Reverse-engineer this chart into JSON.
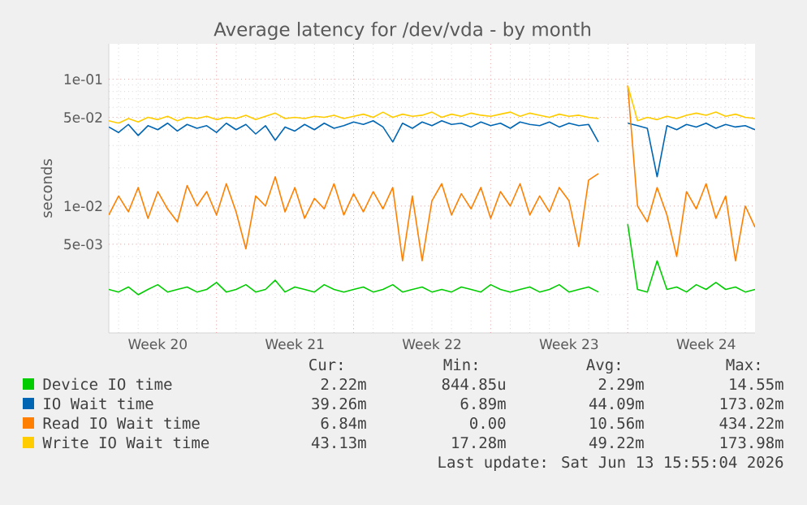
{
  "chart_data": {
    "type": "line",
    "title": "Average latency for /dev/vda - by month",
    "ylabel": "seconds",
    "log": "y",
    "grid": true,
    "legend": "bottom",
    "xlim": [
      "2026-05-12T12:00",
      "2026-06-14T12:00"
    ],
    "xticks": [
      {
        "value": "2026-05-15",
        "label": "Week 20"
      },
      {
        "value": "2026-05-22",
        "label": "Week 21"
      },
      {
        "value": "2026-05-29",
        "label": "Week 22"
      },
      {
        "value": "2026-06-05",
        "label": "Week 23"
      },
      {
        "value": "2026-06-12",
        "label": "Week 24"
      }
    ],
    "ylim": [
      0.001,
      0.19
    ],
    "yticks": [
      {
        "value": 0.005,
        "label": "5e-03"
      },
      {
        "value": 0.01,
        "label": "1e-02"
      },
      {
        "value": 0.05,
        "label": "5e-02"
      },
      {
        "value": 0.1,
        "label": "1e-01"
      }
    ],
    "x": [
      "2026-05-12T12:00",
      "2026-05-13T00:00",
      "2026-05-13T12:00",
      "2026-05-14T00:00",
      "2026-05-14T12:00",
      "2026-05-15T00:00",
      "2026-05-15T12:00",
      "2026-05-16T00:00",
      "2026-05-16T12:00",
      "2026-05-17T00:00",
      "2026-05-17T12:00",
      "2026-05-18T00:00",
      "2026-05-18T12:00",
      "2026-05-19T00:00",
      "2026-05-19T12:00",
      "2026-05-20T00:00",
      "2026-05-20T12:00",
      "2026-05-21T00:00",
      "2026-05-21T12:00",
      "2026-05-22T00:00",
      "2026-05-22T12:00",
      "2026-05-23T00:00",
      "2026-05-23T12:00",
      "2026-05-24T00:00",
      "2026-05-24T12:00",
      "2026-05-25T00:00",
      "2026-05-25T12:00",
      "2026-05-26T00:00",
      "2026-05-26T12:00",
      "2026-05-27T00:00",
      "2026-05-27T12:00",
      "2026-05-28T00:00",
      "2026-05-28T12:00",
      "2026-05-29T00:00",
      "2026-05-29T12:00",
      "2026-05-30T00:00",
      "2026-05-30T12:00",
      "2026-05-31T00:00",
      "2026-05-31T12:00",
      "2026-06-01T00:00",
      "2026-06-01T12:00",
      "2026-06-02T00:00",
      "2026-06-02T12:00",
      "2026-06-03T00:00",
      "2026-06-03T12:00",
      "2026-06-04T00:00",
      "2026-06-04T12:00",
      "2026-06-05T00:00",
      "2026-06-05T12:00",
      "2026-06-06T00:00",
      "2026-06-06T12:00",
      "2026-06-07T00:00",
      "2026-06-07T12:00",
      "2026-06-08T00:00",
      "2026-06-08T12:00",
      "2026-06-09T00:00",
      "2026-06-09T12:00",
      "2026-06-10T00:00",
      "2026-06-10T12:00",
      "2026-06-11T00:00",
      "2026-06-11T12:00",
      "2026-06-12T00:00",
      "2026-06-12T12:00",
      "2026-06-13T00:00",
      "2026-06-13T12:00",
      "2026-06-14T00:00",
      "2026-06-14T12:00"
    ],
    "series": [
      {
        "name": "Device IO time",
        "color": "#00cc00",
        "values": [
          0.0022,
          0.0021,
          0.0023,
          0.002,
          0.0022,
          0.0024,
          0.0021,
          0.0022,
          0.0023,
          0.0021,
          0.0022,
          0.0025,
          0.0021,
          0.0022,
          0.0024,
          0.0021,
          0.0022,
          0.0026,
          0.0021,
          0.0023,
          0.0022,
          0.0021,
          0.0024,
          0.0022,
          0.0021,
          0.0022,
          0.0023,
          0.0021,
          0.0022,
          0.0024,
          0.0021,
          0.0022,
          0.0023,
          0.0021,
          0.0022,
          0.0021,
          0.0023,
          0.0022,
          0.0021,
          0.0024,
          0.0022,
          0.0021,
          0.0022,
          0.0023,
          0.0021,
          0.0022,
          0.0024,
          0.0021,
          0.0022,
          0.0023,
          0.0021,
          null,
          null,
          0.0072,
          0.0022,
          0.0021,
          0.0037,
          0.0022,
          0.0023,
          0.0021,
          0.0024,
          0.0022,
          0.0025,
          0.0022,
          0.0023,
          0.0021,
          0.0022
        ]
      },
      {
        "name": "IO Wait time",
        "color": "#0066b3",
        "values": [
          0.042,
          0.038,
          0.044,
          0.036,
          0.043,
          0.04,
          0.045,
          0.039,
          0.044,
          0.041,
          0.043,
          0.038,
          0.045,
          0.04,
          0.044,
          0.037,
          0.043,
          0.033,
          0.042,
          0.039,
          0.044,
          0.04,
          0.045,
          0.041,
          0.043,
          0.046,
          0.044,
          0.047,
          0.042,
          0.032,
          0.045,
          0.041,
          0.046,
          0.043,
          0.047,
          0.044,
          0.045,
          0.042,
          0.046,
          0.043,
          0.045,
          0.041,
          0.046,
          0.044,
          0.043,
          0.046,
          0.042,
          0.045,
          0.043,
          0.044,
          0.032,
          null,
          null,
          0.045,
          0.043,
          0.041,
          0.017,
          0.043,
          0.04,
          0.044,
          0.042,
          0.045,
          0.041,
          0.044,
          0.042,
          0.043,
          0.04
        ]
      },
      {
        "name": "Read IO Wait time",
        "color": "#ff8000",
        "values": [
          0.0085,
          0.012,
          0.009,
          0.014,
          0.008,
          0.013,
          0.0095,
          0.0075,
          0.0145,
          0.01,
          0.013,
          0.0085,
          0.015,
          0.009,
          0.0046,
          0.012,
          0.01,
          0.017,
          0.009,
          0.014,
          0.008,
          0.0115,
          0.0095,
          0.015,
          0.0085,
          0.0125,
          0.009,
          0.013,
          0.0095,
          0.014,
          0.0037,
          0.012,
          0.0037,
          0.011,
          0.015,
          0.0085,
          0.0125,
          0.0095,
          0.014,
          0.008,
          0.013,
          0.01,
          0.015,
          0.0085,
          0.012,
          0.009,
          0.014,
          0.011,
          0.0048,
          0.016,
          0.018,
          null,
          null,
          0.089,
          0.01,
          0.0075,
          0.014,
          0.0085,
          0.004,
          0.013,
          0.0095,
          0.015,
          0.008,
          0.012,
          0.0037,
          0.01,
          0.0068
        ]
      },
      {
        "name": "Write IO Wait time",
        "color": "#ffcc00",
        "values": [
          0.047,
          0.045,
          0.049,
          0.046,
          0.05,
          0.048,
          0.051,
          0.047,
          0.05,
          0.049,
          0.051,
          0.048,
          0.05,
          0.049,
          0.052,
          0.048,
          0.051,
          0.054,
          0.049,
          0.05,
          0.049,
          0.051,
          0.05,
          0.052,
          0.049,
          0.051,
          0.053,
          0.05,
          0.055,
          0.05,
          0.053,
          0.051,
          0.052,
          0.055,
          0.05,
          0.053,
          0.051,
          0.054,
          0.052,
          0.051,
          0.053,
          0.055,
          0.051,
          0.054,
          0.052,
          0.05,
          0.053,
          0.051,
          0.052,
          0.05,
          0.049,
          null,
          null,
          0.089,
          0.047,
          0.05,
          0.048,
          0.051,
          0.049,
          0.052,
          0.054,
          0.052,
          0.055,
          0.051,
          0.053,
          0.05,
          0.049
        ]
      }
    ],
    "annotations": [
      "Cur:",
      "Min:",
      "Avg:",
      "Max:",
      "2.22m",
      "844.85u",
      "2.29m",
      "14.55m",
      "39.26m",
      "6.89m",
      "44.09m",
      "173.02m",
      "6.84m",
      "0.00",
      "10.56m",
      "434.22m",
      "43.13m",
      "17.28m",
      "49.22m",
      "173.98m",
      "Last update: Sat Jun 13 15:55:04 2026"
    ]
  }
}
